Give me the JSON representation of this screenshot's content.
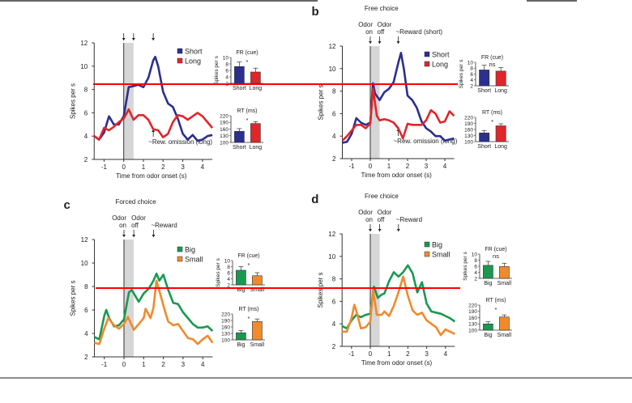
{
  "chart_data": [
    {
      "type": "line",
      "panel_label": "",
      "title": "",
      "xlabel": "Time from odor onset (s)",
      "ylabel": "Spikes per s",
      "xlim": [
        -1.5,
        4.5
      ],
      "ylim": [
        2,
        12
      ],
      "xticks": [
        "-1",
        "0",
        "1",
        "2",
        "3",
        "4"
      ],
      "yticks": [
        "2",
        "4",
        "6",
        "8",
        "10",
        "12"
      ],
      "odor_window": [
        0,
        0.5
      ],
      "events": [
        {
          "x": 0,
          "label_lines": []
        },
        {
          "x": 0.5,
          "label_lines": []
        },
        {
          "x": 1.5,
          "label_lines": []
        }
      ],
      "annotation": {
        "x": 1.5,
        "label": "~Rew. omission (long)"
      },
      "legend": "top-right",
      "series": [
        {
          "name": "Short",
          "color": "#2b2f8f",
          "x": [
            -1.5,
            -1.25,
            -1,
            -0.75,
            -0.5,
            -0.25,
            0,
            0.25,
            0.5,
            0.75,
            1,
            1.25,
            1.5,
            1.6,
            1.75,
            2,
            2.25,
            2.5,
            2.75,
            3,
            3.25,
            3.5,
            3.75,
            4,
            4.25,
            4.5
          ],
          "y": [
            4,
            3.7,
            4.3,
            5.7,
            5,
            5,
            5.7,
            8.2,
            8.3,
            8.4,
            8.2,
            9,
            10.5,
            10.8,
            10,
            7.8,
            6.8,
            6.5,
            5.5,
            4.2,
            3.7,
            4.1,
            3.6,
            3.7,
            4,
            4.1
          ]
        },
        {
          "name": "Long",
          "color": "#e0262b",
          "x": [
            -1.5,
            -1.25,
            -1,
            -0.75,
            -0.5,
            -0.25,
            0,
            0.25,
            0.5,
            0.75,
            1,
            1.25,
            1.5,
            1.75,
            2,
            2.25,
            2.5,
            2.75,
            3,
            3.25,
            3.5,
            3.75,
            4,
            4.25,
            4.5
          ],
          "y": [
            4,
            3.7,
            4.7,
            4.5,
            4.8,
            5.2,
            5.5,
            6.3,
            5.4,
            5.8,
            5.8,
            5.4,
            4.6,
            4.5,
            3.9,
            4.2,
            5.2,
            5.8,
            5.7,
            5.4,
            5.7,
            6,
            5.7,
            5.2,
            4.7
          ]
        }
      ],
      "insets": [
        {
          "title": "FR (cue)",
          "ylabel": "Spikes per s",
          "significance": "*",
          "categories": [
            "Short",
            "Long"
          ],
          "values": [
            7.2,
            5.5
          ],
          "errors": [
            1.4,
            1.2
          ],
          "ylim": [
            2,
            10
          ],
          "yticks": [
            "2",
            "4",
            "6",
            "8",
            "10"
          ]
        },
        {
          "title": "RT (ms)",
          "ylabel": "",
          "significance": "*",
          "categories": [
            "Short",
            "Long"
          ],
          "values": [
            150,
            185
          ],
          "errors": [
            12,
            8
          ],
          "ylim": [
            100,
            220
          ],
          "yticks": [
            "100",
            "130",
            "160",
            "190",
            "220"
          ]
        }
      ]
    },
    {
      "type": "line",
      "panel_label": "b",
      "title": "Free choice",
      "xlabel": "Time from odor onset (s)",
      "ylabel": "Spikes per s",
      "xlim": [
        -1.5,
        4.5
      ],
      "ylim": [
        2,
        12
      ],
      "xticks": [
        "-1",
        "0",
        "1",
        "2",
        "3",
        "4"
      ],
      "yticks": [
        "2",
        "4",
        "6",
        "8",
        "10",
        "12"
      ],
      "odor_window": [
        0,
        0.5
      ],
      "events": [
        {
          "x": 0,
          "label_lines": [
            "Odor",
            "on"
          ]
        },
        {
          "x": 0.5,
          "label_lines": [
            "Odor",
            "off"
          ]
        },
        {
          "x": 1.5,
          "label_lines": [
            "~Reward (short)"
          ]
        }
      ],
      "annotation": {
        "x": 1.5,
        "label": "~Rew. omission (long)"
      },
      "legend": "top-right",
      "series": [
        {
          "name": "Short",
          "color": "#2b2f8f",
          "x": [
            -1.5,
            -1.25,
            -1,
            -0.75,
            -0.5,
            -0.25,
            0,
            0.15,
            0.25,
            0.5,
            0.75,
            1,
            1.25,
            1.5,
            1.65,
            1.8,
            2,
            2.25,
            2.5,
            2.75,
            3,
            3.25,
            3.5,
            3.75,
            4,
            4.25,
            4.5
          ],
          "y": [
            3.4,
            3.5,
            4.2,
            5.6,
            5.2,
            5,
            5.2,
            8.7,
            7.8,
            7.2,
            7.9,
            8.2,
            8.8,
            10.5,
            11.4,
            10,
            7.6,
            7.2,
            6.5,
            5.3,
            4.7,
            4.4,
            4,
            4,
            3.6,
            3.7,
            3.8
          ]
        },
        {
          "name": "Long",
          "color": "#e0262b",
          "x": [
            -1.5,
            -1.25,
            -1,
            -0.75,
            -0.5,
            -0.25,
            0,
            0.15,
            0.35,
            0.5,
            0.75,
            1,
            1.25,
            1.5,
            1.75,
            2,
            2.25,
            2.5,
            2.75,
            3,
            3.25,
            3.5,
            3.75,
            4,
            4.25,
            4.5
          ],
          "y": [
            3.6,
            4,
            4.5,
            5,
            5,
            4.7,
            5.1,
            8.2,
            5.8,
            5.4,
            5.5,
            5.4,
            5.2,
            4.7,
            3.8,
            5.1,
            5,
            5,
            5,
            5.4,
            6.3,
            6,
            5.2,
            5.3,
            6.2,
            5.8
          ]
        }
      ],
      "insets": [
        {
          "title": "FR (cue)",
          "ylabel": "Spikes per s",
          "significance": "ns",
          "categories": [
            "Short",
            "Long"
          ],
          "values": [
            7.4,
            7.0
          ],
          "errors": [
            1.6,
            1.2
          ],
          "ylim": [
            2,
            10
          ],
          "yticks": [
            "2",
            "4",
            "6",
            "8",
            "10"
          ]
        },
        {
          "title": "RT (ms)",
          "ylabel": "",
          "significance": "*",
          "categories": [
            "Short",
            "Long"
          ],
          "values": [
            143,
            178
          ],
          "errors": [
            12,
            10
          ],
          "ylim": [
            100,
            220
          ],
          "yticks": [
            "100",
            "130",
            "160",
            "190",
            "220"
          ]
        }
      ]
    },
    {
      "type": "line",
      "panel_label": "c",
      "title": "Forced choice",
      "xlabel": "",
      "ylabel": "Spikes per s",
      "xlim": [
        -1.5,
        4.5
      ],
      "ylim": [
        2,
        12
      ],
      "xticks": [
        "-1",
        "0",
        "1",
        "2",
        "3",
        "4"
      ],
      "yticks": [
        "2",
        "4",
        "6",
        "8",
        "10",
        "12"
      ],
      "odor_window": [
        0,
        0.5
      ],
      "events": [
        {
          "x": 0,
          "label_lines": [
            "Odor",
            "on"
          ]
        },
        {
          "x": 0.5,
          "label_lines": [
            "Odor",
            "off"
          ]
        },
        {
          "x": 1.5,
          "label_lines": [
            "~Reward"
          ]
        }
      ],
      "annotation": null,
      "legend": "top-right",
      "series": [
        {
          "name": "Big",
          "color": "#1a9850",
          "x": [
            -1.5,
            -1.25,
            -1,
            -0.9,
            -0.75,
            -0.5,
            -0.25,
            0,
            0.25,
            0.4,
            0.75,
            1,
            1.25,
            1.5,
            1.65,
            1.8,
            2,
            2.25,
            2.5,
            2.75,
            3,
            3.25,
            3.5,
            3.75,
            4,
            4.25,
            4.5
          ],
          "y": [
            3.7,
            3.5,
            5.5,
            6,
            5.3,
            4.6,
            4.7,
            5.2,
            7.5,
            7.7,
            6.7,
            7.4,
            7.8,
            8.5,
            9.1,
            8.5,
            9,
            7.7,
            6.6,
            6.5,
            5.8,
            5.3,
            4.8,
            4.5,
            4.5,
            4.6,
            4.2
          ]
        },
        {
          "name": "Small",
          "color": "#f08a2c",
          "x": [
            -1.5,
            -1.25,
            -1,
            -0.8,
            -0.5,
            -0.25,
            0,
            0.2,
            0.5,
            0.75,
            1,
            1.1,
            1.35,
            1.5,
            1.65,
            1.9,
            2.1,
            2.25,
            2.5,
            2.75,
            3,
            3.25,
            3.5,
            3.75,
            4,
            4.25,
            4.5
          ],
          "y": [
            3.2,
            3.1,
            4.4,
            5.3,
            4.7,
            4.4,
            4.8,
            5.4,
            4.3,
            4.8,
            5.3,
            6.1,
            5.3,
            6.2,
            8.5,
            7,
            5.8,
            5,
            4.7,
            4.8,
            4.2,
            3.6,
            3.5,
            3.1,
            3.5,
            3.8,
            3.2
          ]
        }
      ],
      "insets": [
        {
          "title": "FR (cue)",
          "ylabel": "Spikes per s",
          "significance": "*",
          "categories": [
            "Big",
            "Small"
          ],
          "values": [
            6.8,
            5.0
          ],
          "errors": [
            1.2,
            1.0
          ],
          "ylim": [
            2,
            10
          ],
          "yticks": [
            "2",
            "4",
            "6",
            "8",
            "10"
          ]
        },
        {
          "title": "RT (ms)",
          "ylabel": "",
          "significance": "*",
          "categories": [
            "Big",
            "Small"
          ],
          "values": [
            133,
            185
          ],
          "errors": [
            10,
            12
          ],
          "ylim": [
            100,
            220
          ],
          "yticks": [
            "100",
            "130",
            "160",
            "190",
            "220"
          ]
        }
      ]
    },
    {
      "type": "line",
      "panel_label": "d",
      "title": "Free choice",
      "xlabel": "Time from odor onset (s)",
      "ylabel": "Spikes per s",
      "xlim": [
        -1.5,
        4.5
      ],
      "ylim": [
        2,
        12
      ],
      "xticks": [
        "-1",
        "0",
        "1",
        "2",
        "3",
        "4"
      ],
      "yticks": [
        "2",
        "4",
        "6",
        "8",
        "10",
        "12"
      ],
      "odor_window": [
        0,
        0.5
      ],
      "events": [
        {
          "x": 0,
          "label_lines": [
            "Odor",
            "on"
          ]
        },
        {
          "x": 0.5,
          "label_lines": [
            "Odor",
            "off"
          ]
        },
        {
          "x": 1.5,
          "label_lines": [
            "~Reward"
          ]
        }
      ],
      "annotation": null,
      "legend": "top-right",
      "series": [
        {
          "name": "Big",
          "color": "#1a9850",
          "x": [
            -1.5,
            -1.25,
            -1,
            -0.75,
            -0.5,
            -0.25,
            0,
            0.2,
            0.4,
            0.6,
            0.75,
            1,
            1.25,
            1.5,
            1.75,
            2,
            2.25,
            2.5,
            2.75,
            3,
            3.25,
            3.5,
            3.75,
            4,
            4.25,
            4.5
          ],
          "y": [
            3.8,
            3.6,
            4.3,
            4.8,
            4.6,
            4.8,
            4.9,
            7.3,
            6.3,
            6.6,
            6.7,
            7.8,
            8.6,
            8.2,
            8.6,
            9.2,
            8.5,
            6.8,
            7.7,
            5.8,
            5.1,
            5,
            4.9,
            4.7,
            4.5,
            4.2
          ]
        },
        {
          "name": "Small",
          "color": "#f08a2c",
          "x": [
            -1.5,
            -1.25,
            -1,
            -0.85,
            -0.75,
            -0.5,
            -0.25,
            0,
            0.15,
            0.35,
            0.6,
            0.75,
            1,
            1.25,
            1.5,
            1.75,
            2,
            2.25,
            2.5,
            2.75,
            3,
            3.25,
            3.5,
            3.75,
            4,
            4.25,
            4.5
          ],
          "y": [
            3.3,
            3.3,
            4.5,
            5.7,
            5.2,
            3.6,
            3.7,
            4.2,
            7,
            4.8,
            4.8,
            5.1,
            4.7,
            5.6,
            6.8,
            8.2,
            6.5,
            5.2,
            4.8,
            5,
            4.3,
            4,
            3.7,
            3,
            3.5,
            3.3,
            3.1
          ]
        }
      ],
      "insets": [
        {
          "title": "FR (cue)",
          "ylabel": "Spikes per s",
          "significance": "ns",
          "categories": [
            "Big",
            "Small"
          ],
          "values": [
            6.3,
            5.9
          ],
          "errors": [
            1.3,
            1.1
          ],
          "ylim": [
            2,
            10
          ],
          "yticks": [
            "2",
            "4",
            "6",
            "8",
            "10"
          ]
        },
        {
          "title": "RT (ms)",
          "ylabel": "",
          "significance": "*",
          "categories": [
            "Big",
            "Small"
          ],
          "values": [
            130,
            163
          ],
          "errors": [
            10,
            10
          ],
          "ylim": [
            100,
            220
          ],
          "yticks": [
            "100",
            "130",
            "160",
            "190",
            "220"
          ]
        }
      ]
    }
  ],
  "overlay": {
    "marker_color": "#ff0000"
  }
}
